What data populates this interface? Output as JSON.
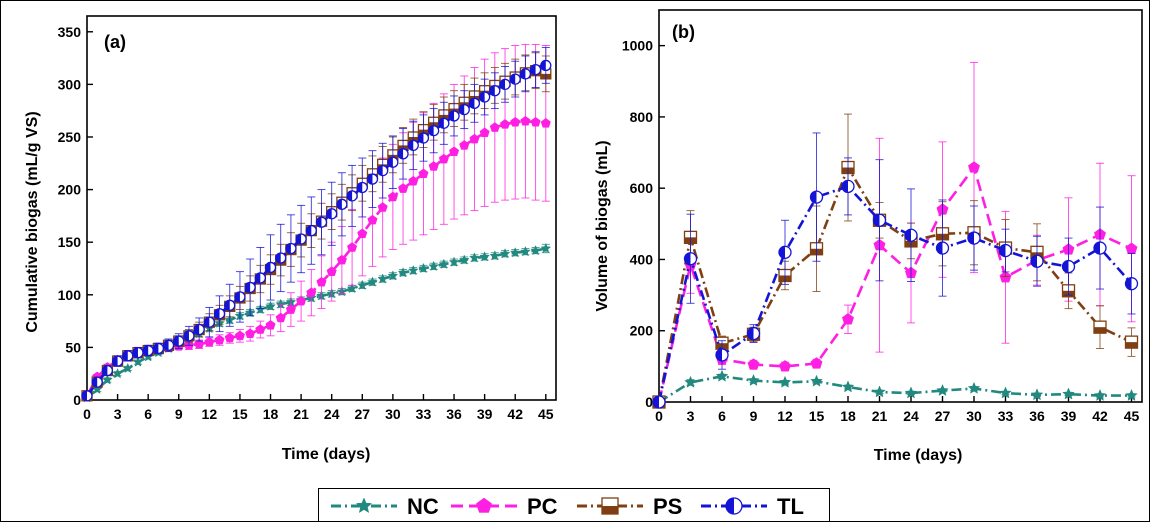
{
  "colors": {
    "NC": "#22897f",
    "PC": "#ff1fe3",
    "PS": "#7f3f12",
    "TL": "#1414d6"
  },
  "chart_data": [
    {
      "type": "line",
      "panel_label": "(a)",
      "xlabel": "Time (days)",
      "ylabel": "Cumulative biogas (mL/g VS)",
      "xlim": [
        0,
        46
      ],
      "ylim": [
        0,
        365
      ],
      "xticks": [
        0,
        3,
        6,
        9,
        12,
        15,
        18,
        21,
        24,
        27,
        30,
        33,
        36,
        39,
        42,
        45
      ],
      "yticks": [
        0,
        50,
        100,
        150,
        200,
        250,
        300,
        350
      ],
      "x": [
        0,
        1,
        2,
        3,
        4,
        5,
        6,
        7,
        8,
        9,
        10,
        11,
        12,
        13,
        14,
        15,
        16,
        17,
        18,
        19,
        20,
        21,
        22,
        23,
        24,
        25,
        26,
        27,
        28,
        29,
        30,
        31,
        32,
        33,
        34,
        35,
        36,
        37,
        38,
        39,
        40,
        41,
        42,
        43,
        44,
        45
      ],
      "series": [
        {
          "name": "NC",
          "values": [
            2,
            10,
            19,
            25,
            30,
            36,
            41,
            45,
            49,
            54,
            58,
            63,
            68,
            73,
            76,
            80,
            83,
            86,
            89,
            91,
            93,
            95,
            97,
            99,
            101,
            103,
            106,
            109,
            112,
            115,
            118,
            121,
            123,
            125,
            127,
            129,
            131,
            133,
            135,
            136,
            137,
            139,
            140,
            141,
            142,
            144
          ],
          "error": [
            0,
            2,
            2,
            2,
            2,
            2,
            2,
            2,
            2,
            2,
            3,
            3,
            3,
            3,
            3,
            3,
            3,
            3,
            3,
            3,
            3,
            3,
            3,
            3,
            3,
            3,
            3,
            3,
            3,
            3,
            3,
            3,
            3,
            3,
            3,
            3,
            3,
            3,
            3,
            3,
            3,
            3,
            3,
            3,
            3,
            4
          ]
        },
        {
          "name": "PC",
          "values": [
            4,
            22,
            31,
            38,
            42,
            45,
            47,
            48,
            50,
            51,
            52,
            53,
            55,
            57,
            59,
            61,
            63,
            67,
            71,
            78,
            86,
            94,
            102,
            112,
            122,
            133,
            145,
            158,
            171,
            183,
            193,
            201,
            208,
            215,
            222,
            229,
            236,
            242,
            248,
            254,
            259,
            262,
            264,
            265,
            264,
            263
          ],
          "error": [
            0,
            2,
            3,
            3,
            3,
            3,
            3,
            3,
            3,
            3,
            4,
            4,
            4,
            5,
            5,
            6,
            7,
            8,
            10,
            13,
            16,
            19,
            22,
            25,
            28,
            32,
            36,
            40,
            44,
            47,
            50,
            53,
            56,
            58,
            60,
            62,
            64,
            66,
            68,
            70,
            71,
            72,
            73,
            73,
            74,
            74
          ]
        },
        {
          "name": "PS",
          "values": [
            4,
            17,
            28,
            37,
            42,
            45,
            47,
            49,
            52,
            56,
            61,
            67,
            74,
            81,
            89,
            97,
            106,
            115,
            124,
            133,
            143,
            152,
            161,
            170,
            179,
            188,
            197,
            206,
            215,
            224,
            233,
            242,
            250,
            257,
            264,
            271,
            277,
            283,
            289,
            294,
            299,
            303,
            307,
            311,
            313,
            310
          ],
          "error": [
            0,
            2,
            3,
            3,
            3,
            3,
            3,
            4,
            4,
            5,
            6,
            7,
            8,
            9,
            10,
            11,
            12,
            13,
            14,
            15,
            16,
            16,
            16,
            17,
            17,
            17,
            17,
            17,
            17,
            17,
            17,
            17,
            17,
            17,
            17,
            17,
            17,
            17,
            17,
            17,
            17,
            17,
            17,
            17,
            17,
            17
          ]
        },
        {
          "name": "TL",
          "values": [
            4,
            17,
            28,
            37,
            42,
            45,
            47,
            49,
            52,
            56,
            61,
            67,
            74,
            82,
            90,
            98,
            107,
            116,
            126,
            135,
            144,
            153,
            161,
            169,
            177,
            186,
            194,
            202,
            210,
            218,
            226,
            234,
            242,
            249,
            256,
            263,
            270,
            276,
            282,
            288,
            294,
            300,
            305,
            310,
            314,
            318
          ],
          "error": [
            0,
            3,
            4,
            5,
            5,
            5,
            5,
            5,
            6,
            7,
            9,
            11,
            14,
            17,
            20,
            24,
            27,
            29,
            31,
            32,
            32,
            32,
            32,
            31,
            30,
            30,
            29,
            28,
            27,
            26,
            25,
            24,
            23,
            22,
            21,
            20,
            19,
            18,
            18,
            17,
            17,
            17,
            17,
            17,
            17,
            17
          ]
        }
      ]
    },
    {
      "type": "line",
      "panel_label": "(b)",
      "xlabel": "Time (days)",
      "ylabel": "Volume of biogas (mL)",
      "xlim": [
        0,
        46
      ],
      "ylim": [
        0,
        1100
      ],
      "xticks": [
        0,
        3,
        6,
        9,
        12,
        15,
        18,
        21,
        24,
        27,
        30,
        33,
        36,
        39,
        42,
        45
      ],
      "yticks": [
        0,
        200,
        400,
        600,
        800,
        1000
      ],
      "x": [
        0,
        3,
        6,
        9,
        12,
        15,
        18,
        21,
        24,
        27,
        30,
        33,
        36,
        39,
        42,
        45
      ],
      "series": [
        {
          "name": "NC",
          "values": [
            0,
            55,
            72,
            60,
            55,
            58,
            42,
            28,
            25,
            32,
            38,
            25,
            20,
            22,
            18,
            18
          ],
          "error": [
            0,
            8,
            6,
            5,
            5,
            5,
            5,
            4,
            4,
            4,
            5,
            4,
            4,
            4,
            4,
            4
          ]
        },
        {
          "name": "PC",
          "values": [
            0,
            385,
            120,
            105,
            100,
            108,
            232,
            440,
            362,
            540,
            658,
            350,
            398,
            428,
            470,
            430
          ],
          "error": [
            0,
            80,
            15,
            12,
            12,
            12,
            40,
            300,
            140,
            190,
            295,
            185,
            70,
            145,
            200,
            205
          ]
        },
        {
          "name": "PS",
          "values": [
            0,
            462,
            165,
            190,
            355,
            430,
            658,
            510,
            452,
            472,
            475,
            432,
            420,
            312,
            210,
            168
          ],
          "error": [
            0,
            75,
            20,
            20,
            40,
            120,
            150,
            50,
            50,
            90,
            90,
            80,
            80,
            50,
            60,
            40
          ]
        },
        {
          "name": "TL",
          "values": [
            0,
            402,
            132,
            192,
            420,
            575,
            605,
            510,
            468,
            432,
            460,
            425,
            395,
            380,
            432,
            332
          ],
          "error": [
            0,
            125,
            40,
            25,
            90,
            180,
            80,
            170,
            130,
            135,
            90,
            60,
            70,
            80,
            115,
            85
          ]
        }
      ]
    }
  ],
  "legend": [
    {
      "name": "NC",
      "label": "NC"
    },
    {
      "name": "PC",
      "label": "PC"
    },
    {
      "name": "PS",
      "label": "PS"
    },
    {
      "name": "TL",
      "label": "TL"
    }
  ]
}
